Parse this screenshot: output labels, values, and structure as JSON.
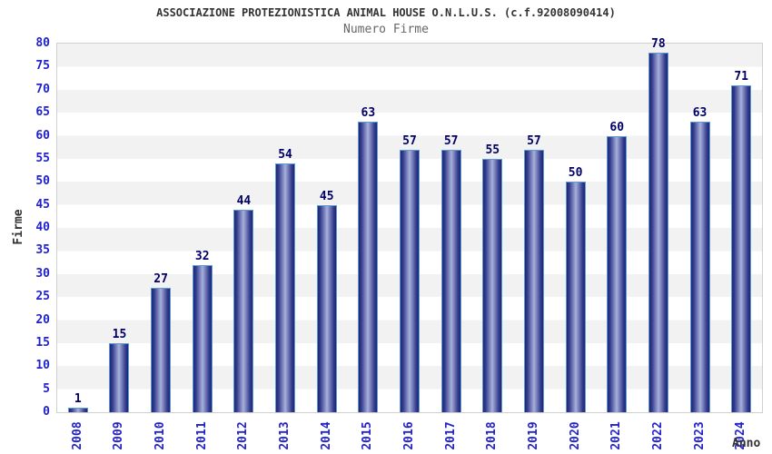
{
  "chart_data": {
    "type": "bar",
    "title": "ASSOCIAZIONE PROTEZIONISTICA ANIMAL HOUSE O.N.L.U.S. (c.f.92008090414)",
    "subtitle": "Numero Firme",
    "xlabel": "Anno",
    "ylabel": "Firme",
    "categories": [
      "2008",
      "2009",
      "2010",
      "2011",
      "2012",
      "2013",
      "2014",
      "2015",
      "2016",
      "2017",
      "2018",
      "2019",
      "2020",
      "2021",
      "2022",
      "2023",
      "2024"
    ],
    "values": [
      1,
      15,
      27,
      32,
      44,
      54,
      45,
      63,
      57,
      57,
      55,
      57,
      50,
      60,
      78,
      63,
      71
    ],
    "ylim": [
      0,
      80
    ],
    "ytick_step": 5,
    "grid": "alternating horizontal gray/white bands every 5 units",
    "legend": "none",
    "bar_style": "glossy vertical cylinder, dark edges with light center, light-blue outline",
    "colors": {
      "title": "#333333",
      "subtitle": "#666666",
      "tick_label": "#2222cc",
      "value_label": "#000066",
      "axis_title": "#333333",
      "bar_edge_dark": "#1e2573",
      "bar_center_light": "#a8b0db",
      "bar_border": "#5b9bd5",
      "band_gray": "#f2f2f2",
      "plot_border": "#d0d0d0"
    }
  }
}
